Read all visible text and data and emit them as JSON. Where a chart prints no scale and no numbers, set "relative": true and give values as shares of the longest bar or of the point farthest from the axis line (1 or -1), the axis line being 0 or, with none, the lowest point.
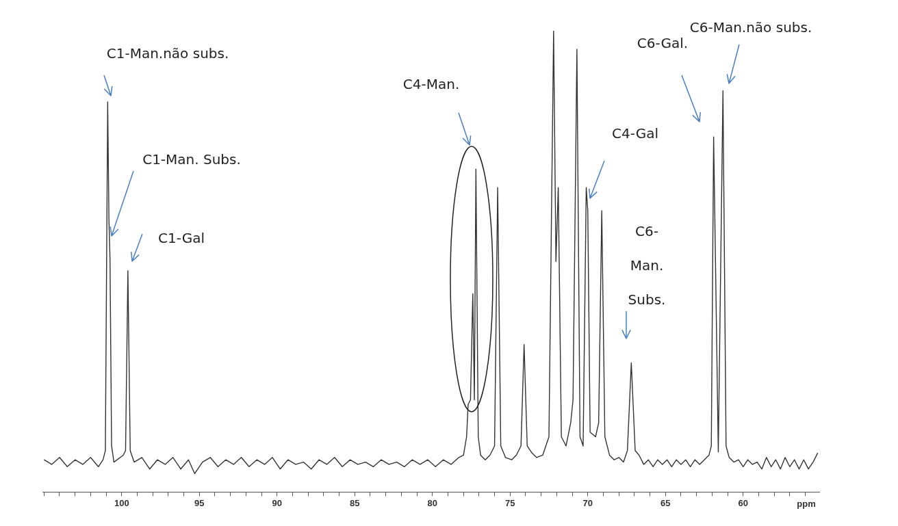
{
  "chart_data": {
    "type": "line",
    "relative": true,
    "xlabel": "ppm",
    "xlim": [
      105.1,
      55.1
    ],
    "xticks": [
      {
        "value": 105,
        "label": null
      },
      {
        "value": 104,
        "label": null
      },
      {
        "value": 103,
        "label": null
      },
      {
        "value": 102,
        "label": null
      },
      {
        "value": 101,
        "label": null
      },
      100,
      {
        "value": 99,
        "label": null
      },
      {
        "value": 98,
        "label": null
      },
      {
        "value": 97,
        "label": null
      },
      {
        "value": 96,
        "label": null
      },
      95,
      {
        "value": 94,
        "label": null
      },
      {
        "value": 93,
        "label": null
      },
      {
        "value": 92,
        "label": null
      },
      {
        "value": 91,
        "label": null
      },
      90,
      {
        "value": 89,
        "label": null
      },
      {
        "value": 88,
        "label": null
      },
      {
        "value": 87,
        "label": null
      },
      {
        "value": 86,
        "label": null
      },
      85,
      {
        "value": 84,
        "label": null
      },
      {
        "value": 83,
        "label": null
      },
      {
        "value": 82,
        "label": null
      },
      {
        "value": 81,
        "label": null
      },
      80,
      {
        "value": 79,
        "label": null
      },
      {
        "value": 78,
        "label": null
      },
      {
        "value": 77,
        "label": null
      },
      {
        "value": 76,
        "label": null
      },
      75,
      {
        "value": 74,
        "label": null
      },
      {
        "value": 73,
        "label": null
      },
      {
        "value": 72,
        "label": null
      },
      {
        "value": 71,
        "label": null
      },
      70,
      {
        "value": 69,
        "label": null
      },
      {
        "value": 68,
        "label": null
      },
      {
        "value": 67,
        "label": null
      },
      {
        "value": 66,
        "label": null
      },
      65,
      {
        "value": 64,
        "label": null
      },
      {
        "value": 63,
        "label": null
      },
      {
        "value": 62,
        "label": null
      },
      {
        "value": 61,
        "label": null
      },
      60,
      {
        "value": 59,
        "label": null
      },
      {
        "value": 58,
        "label": null
      },
      {
        "value": 57,
        "label": null
      },
      {
        "value": 56,
        "label": null
      }
    ],
    "grid": false,
    "legend": false,
    "series": [
      {
        "color": "#333333",
        "x": [
          105.0,
          104.5,
          104.0,
          103.5,
          103.0,
          102.5,
          102.0,
          101.5,
          101.2,
          101.05,
          100.9,
          100.82,
          100.75,
          100.65,
          100.5,
          99.9,
          99.75,
          99.6,
          99.45,
          99.2,
          98.7,
          98.2,
          97.7,
          97.2,
          96.7,
          96.2,
          95.7,
          95.3,
          94.8,
          94.3,
          93.8,
          93.3,
          92.8,
          92.3,
          91.8,
          91.3,
          90.8,
          90.3,
          89.8,
          89.3,
          88.8,
          88.3,
          87.8,
          87.3,
          86.8,
          86.3,
          85.8,
          85.3,
          84.8,
          84.3,
          83.8,
          83.3,
          82.8,
          82.3,
          81.8,
          81.3,
          80.8,
          80.3,
          79.8,
          79.3,
          78.8,
          78.3,
          78.0,
          77.8,
          77.7,
          77.55,
          77.4,
          77.3,
          77.2,
          77.05,
          76.9,
          76.6,
          76.3,
          76.0,
          75.8,
          75.6,
          75.3,
          74.9,
          74.6,
          74.3,
          74.1,
          73.9,
          73.6,
          73.3,
          72.9,
          72.5,
          72.2,
          72.05,
          71.9,
          71.7,
          71.4,
          71.1,
          70.95,
          70.7,
          70.5,
          70.3,
          70.1,
          70.0,
          69.85,
          69.5,
          69.3,
          69.1,
          68.9,
          68.6,
          68.3,
          68.0,
          67.7,
          67.45,
          67.2,
          66.95,
          66.7,
          66.4,
          66.1,
          65.8,
          65.5,
          65.2,
          64.9,
          64.6,
          64.3,
          64.0,
          63.7,
          63.4,
          63.1,
          62.8,
          62.5,
          62.2,
          62.05,
          61.9,
          61.6,
          61.3,
          61.1,
          60.9,
          60.6,
          60.3,
          60.0,
          59.7,
          59.4,
          59.1,
          58.8,
          58.5,
          58.2,
          57.9,
          57.6,
          57.3,
          57.0,
          56.7,
          56.4,
          56.1,
          55.8,
          55.5,
          55.2
        ],
        "values": [
          0.07,
          0.06,
          0.075,
          0.055,
          0.07,
          0.06,
          0.075,
          0.055,
          0.07,
          0.09,
          0.846,
          0.59,
          0.505,
          0.1,
          0.065,
          0.08,
          0.09,
          0.48,
          0.09,
          0.065,
          0.075,
          0.05,
          0.07,
          0.06,
          0.075,
          0.05,
          0.07,
          0.04,
          0.065,
          0.075,
          0.055,
          0.07,
          0.06,
          0.075,
          0.055,
          0.07,
          0.06,
          0.075,
          0.05,
          0.07,
          0.06,
          0.065,
          0.05,
          0.07,
          0.06,
          0.075,
          0.055,
          0.07,
          0.06,
          0.065,
          0.055,
          0.07,
          0.06,
          0.065,
          0.055,
          0.07,
          0.06,
          0.07,
          0.055,
          0.07,
          0.06,
          0.075,
          0.08,
          0.12,
          0.19,
          0.2,
          0.43,
          0.2,
          0.7,
          0.12,
          0.08,
          0.07,
          0.08,
          0.1,
          0.66,
          0.1,
          0.075,
          0.07,
          0.08,
          0.1,
          0.32,
          0.1,
          0.085,
          0.075,
          0.08,
          0.12,
          1.0,
          0.5,
          0.66,
          0.12,
          0.1,
          0.15,
          0.2,
          0.96,
          0.12,
          0.1,
          0.66,
          0.61,
          0.13,
          0.12,
          0.15,
          0.61,
          0.12,
          0.08,
          0.07,
          0.075,
          0.065,
          0.09,
          0.28,
          0.09,
          0.08,
          0.06,
          0.07,
          0.055,
          0.07,
          0.06,
          0.07,
          0.055,
          0.07,
          0.06,
          0.07,
          0.055,
          0.07,
          0.06,
          0.07,
          0.08,
          0.1,
          0.77,
          0.087,
          0.87,
          0.1,
          0.075,
          0.065,
          0.07,
          0.055,
          0.07,
          0.06,
          0.065,
          0.05,
          0.075,
          0.055,
          0.07,
          0.05,
          0.075,
          0.055,
          0.07,
          0.05,
          0.07,
          0.05,
          0.065,
          0.085
        ]
      }
    ],
    "annotations": [
      "C1-Man.não subs.",
      "C1-Man. Subs.",
      "C1-Gal",
      "C4-Man.",
      "C4-Gal",
      "C6- Man. Subs.",
      "C6-Gal.",
      "C6-Man.não subs."
    ]
  }
}
